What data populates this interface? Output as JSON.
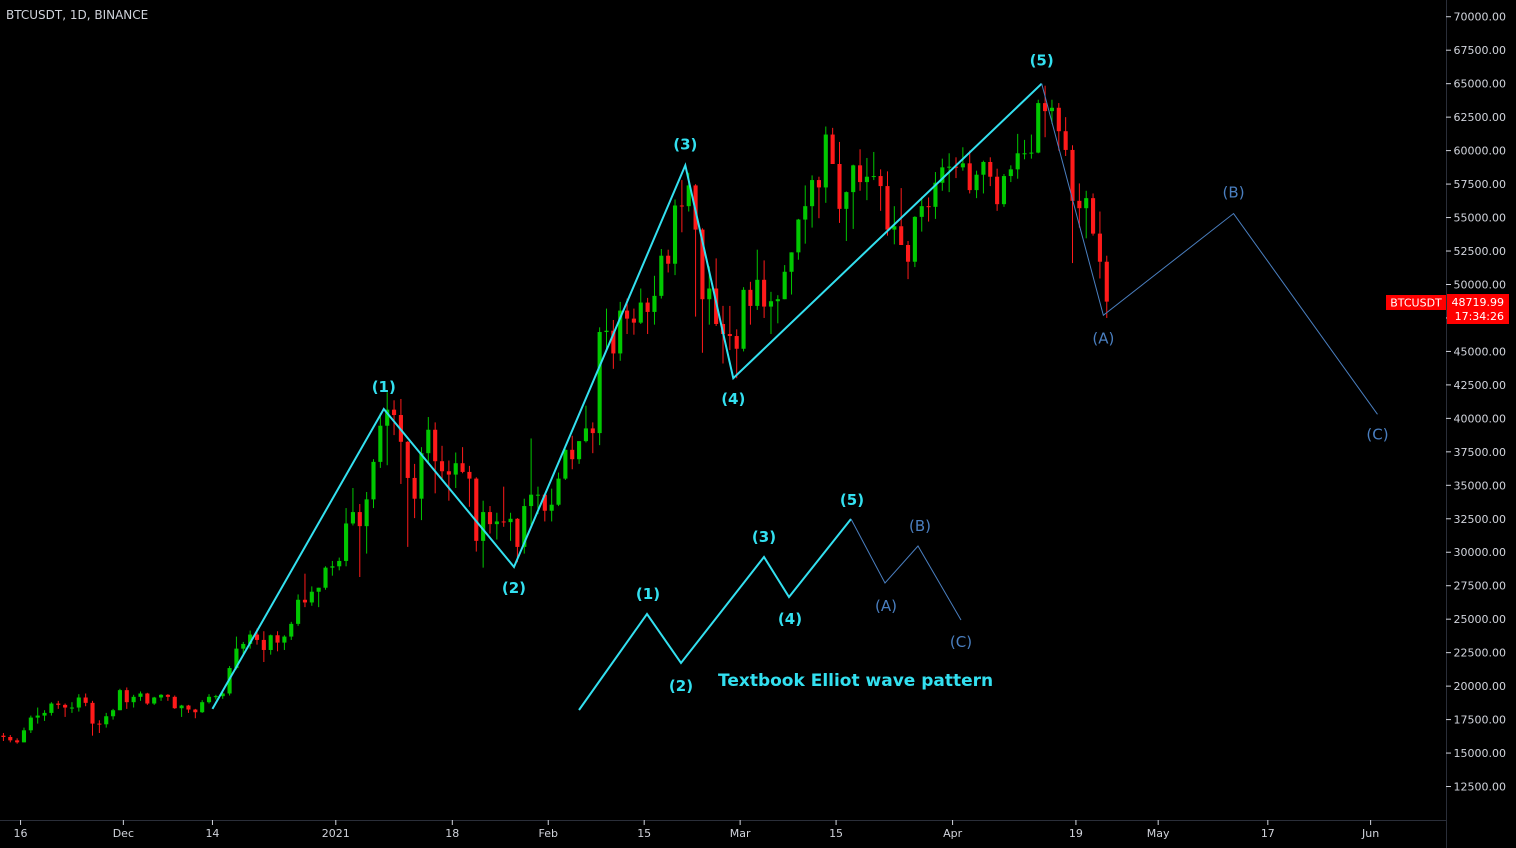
{
  "header": {
    "symbol_title": "BTCUSDT, 1D, BINANCE"
  },
  "price_tag": {
    "symbol": "BTCUSDT",
    "price": "48719.99",
    "countdown": "17:34:26",
    "color": "#ff0000"
  },
  "colors": {
    "background": "#000000",
    "up": "#00c800",
    "down": "#ff1a1a",
    "wave": "#33e0f0",
    "correction": "#4a7fc0",
    "axis_text": "#d1d4dc",
    "axis_line": "#2a2e39"
  },
  "chart_data": {
    "type": "candlestick",
    "title": "BTCUSDT, 1D, BINANCE",
    "y_axis": {
      "min": 10000,
      "max": 71250,
      "position": "right",
      "ticks": [
        "12500.00",
        "15000.00",
        "17500.00",
        "20000.00",
        "22500.00",
        "25000.00",
        "27500.00",
        "30000.00",
        "32500.00",
        "35000.00",
        "37500.00",
        "40000.00",
        "42500.00",
        "45000.00",
        "47500.00",
        "50000.00",
        "52500.00",
        "55000.00",
        "57500.00",
        "60000.00",
        "62500.00",
        "65000.00",
        "67500.00",
        "70000.00"
      ]
    },
    "x_axis": {
      "start": "2020-11-13",
      "end": "2021-06-12",
      "ticks": [
        {
          "label": "16",
          "date": "2020-11-16"
        },
        {
          "label": "Dec",
          "date": "2020-12-01"
        },
        {
          "label": "14",
          "date": "2020-12-14"
        },
        {
          "label": "2021",
          "date": "2021-01-01"
        },
        {
          "label": "18",
          "date": "2021-01-18"
        },
        {
          "label": "Feb",
          "date": "2021-02-01"
        },
        {
          "label": "15",
          "date": "2021-02-15"
        },
        {
          "label": "Mar",
          "date": "2021-03-01"
        },
        {
          "label": "15",
          "date": "2021-03-15"
        },
        {
          "label": "Apr",
          "date": "2021-04-01"
        },
        {
          "label": "19",
          "date": "2021-04-19"
        },
        {
          "label": "May",
          "date": "2021-05-01"
        },
        {
          "label": "17",
          "date": "2021-05-17"
        },
        {
          "label": "Jun",
          "date": "2021-06-01"
        }
      ]
    },
    "candles": [
      [
        "2020-11-13",
        16300,
        16500,
        15900,
        16200
      ],
      [
        "2020-11-14",
        16200,
        16350,
        15800,
        15950
      ],
      [
        "2020-11-15",
        15950,
        16100,
        15700,
        15800
      ],
      [
        "2020-11-16",
        15800,
        16900,
        15800,
        16700
      ],
      [
        "2020-11-17",
        16700,
        17800,
        16500,
        17650
      ],
      [
        "2020-11-18",
        17650,
        18400,
        17200,
        17800
      ],
      [
        "2020-11-19",
        17800,
        18200,
        17400,
        18000
      ],
      [
        "2020-11-20",
        18000,
        18800,
        17800,
        18700
      ],
      [
        "2020-11-21",
        18700,
        18900,
        18300,
        18600
      ],
      [
        "2020-11-22",
        18600,
        18700,
        17700,
        18400
      ],
      [
        "2020-11-23",
        18400,
        18800,
        18000,
        18400
      ],
      [
        "2020-11-24",
        18400,
        19400,
        18100,
        19150
      ],
      [
        "2020-11-25",
        19150,
        19450,
        18500,
        18750
      ],
      [
        "2020-11-26",
        18750,
        18900,
        16300,
        17200
      ],
      [
        "2020-11-27",
        17200,
        17450,
        16500,
        17150
      ],
      [
        "2020-11-28",
        17150,
        18000,
        16900,
        17750
      ],
      [
        "2020-11-29",
        17750,
        18300,
        17500,
        18200
      ],
      [
        "2020-11-30",
        18200,
        19800,
        18200,
        19700
      ],
      [
        "2020-12-01",
        19700,
        19900,
        18300,
        18800
      ],
      [
        "2020-12-02",
        18800,
        19350,
        18400,
        19200
      ],
      [
        "2020-12-03",
        19200,
        19600,
        18900,
        19450
      ],
      [
        "2020-12-04",
        19450,
        19500,
        18600,
        18700
      ],
      [
        "2020-12-05",
        18700,
        19200,
        18600,
        19150
      ],
      [
        "2020-12-06",
        19150,
        19400,
        18900,
        19350
      ],
      [
        "2020-12-07",
        19350,
        19400,
        18900,
        19200
      ],
      [
        "2020-12-08",
        19200,
        19300,
        18300,
        18350
      ],
      [
        "2020-12-09",
        18350,
        18600,
        17700,
        18550
      ],
      [
        "2020-12-10",
        18550,
        18600,
        18000,
        18250
      ],
      [
        "2020-12-11",
        18250,
        18300,
        17600,
        18050
      ],
      [
        "2020-12-12",
        18050,
        18950,
        18000,
        18800
      ],
      [
        "2020-12-13",
        18800,
        19400,
        18700,
        19200
      ],
      [
        "2020-12-14",
        19200,
        19350,
        19000,
        19250
      ],
      [
        "2020-12-15",
        19250,
        19550,
        19050,
        19450
      ],
      [
        "2020-12-16",
        19450,
        21500,
        19300,
        21350
      ],
      [
        "2020-12-17",
        21350,
        23700,
        21250,
        22800
      ],
      [
        "2020-12-18",
        22800,
        23300,
        22350,
        23150
      ],
      [
        "2020-12-19",
        23150,
        24150,
        22800,
        23850
      ],
      [
        "2020-12-20",
        23850,
        24300,
        23100,
        23450
      ],
      [
        "2020-12-21",
        23450,
        24100,
        21800,
        22700
      ],
      [
        "2020-12-22",
        22700,
        23850,
        22350,
        23800
      ],
      [
        "2020-12-23",
        23800,
        24100,
        22600,
        23250
      ],
      [
        "2020-12-24",
        23250,
        23800,
        22700,
        23700
      ],
      [
        "2020-12-25",
        23700,
        24800,
        23450,
        24650
      ],
      [
        "2020-12-26",
        24650,
        26850,
        24500,
        26450
      ],
      [
        "2020-12-27",
        26450,
        28400,
        25900,
        26250
      ],
      [
        "2020-12-28",
        26250,
        27450,
        26000,
        27050
      ],
      [
        "2020-12-29",
        27050,
        27350,
        25900,
        27350
      ],
      [
        "2020-12-30",
        27350,
        28950,
        27200,
        28850
      ],
      [
        "2020-12-31",
        28850,
        29350,
        28250,
        28950
      ],
      [
        "2021-01-01",
        28950,
        29600,
        28650,
        29350
      ],
      [
        "2021-01-02",
        29350,
        33300,
        28950,
        32150
      ],
      [
        "2021-01-03",
        32150,
        34800,
        32000,
        33000
      ],
      [
        "2021-01-04",
        33000,
        33600,
        28150,
        31950
      ],
      [
        "2021-01-05",
        31950,
        34500,
        29900,
        33950
      ],
      [
        "2021-01-06",
        33950,
        36950,
        33300,
        36750
      ],
      [
        "2021-01-07",
        36750,
        40400,
        36300,
        39450
      ],
      [
        "2021-01-08",
        39450,
        41950,
        36500,
        40650
      ],
      [
        "2021-01-09",
        40650,
        41350,
        38750,
        40250
      ],
      [
        "2021-01-10",
        40250,
        41450,
        35100,
        38250
      ],
      [
        "2021-01-11",
        38250,
        38300,
        30400,
        35550
      ],
      [
        "2021-01-12",
        35550,
        36600,
        32550,
        34000
      ],
      [
        "2021-01-13",
        34000,
        37850,
        32400,
        37400
      ],
      [
        "2021-01-14",
        37400,
        40100,
        36700,
        39150
      ],
      [
        "2021-01-15",
        39150,
        39700,
        34400,
        36800
      ],
      [
        "2021-01-16",
        36800,
        37950,
        35400,
        36050
      ],
      [
        "2021-01-17",
        36050,
        36850,
        33850,
        35800
      ],
      [
        "2021-01-18",
        35800,
        37450,
        34800,
        36650
      ],
      [
        "2021-01-19",
        36650,
        37850,
        35900,
        36000
      ],
      [
        "2021-01-20",
        36000,
        36450,
        33400,
        35500
      ],
      [
        "2021-01-21",
        35500,
        35600,
        30050,
        30850
      ],
      [
        "2021-01-22",
        30850,
        33850,
        28850,
        33000
      ],
      [
        "2021-01-23",
        33000,
        33450,
        31400,
        32100
      ],
      [
        "2021-01-24",
        32100,
        32950,
        30950,
        32300
      ],
      [
        "2021-01-25",
        32300,
        34900,
        31900,
        32250
      ],
      [
        "2021-01-26",
        32250,
        32950,
        30850,
        32500
      ],
      [
        "2021-01-27",
        32500,
        32550,
        29250,
        30400
      ],
      [
        "2021-01-28",
        30400,
        34000,
        29900,
        33450
      ],
      [
        "2021-01-29",
        33450,
        38500,
        31950,
        34300
      ],
      [
        "2021-01-30",
        34300,
        34900,
        32850,
        34300
      ],
      [
        "2021-01-31",
        34300,
        34350,
        32300,
        33100
      ],
      [
        "2021-02-01",
        33100,
        34750,
        32300,
        33550
      ],
      [
        "2021-02-02",
        33550,
        35950,
        33450,
        35500
      ],
      [
        "2021-02-03",
        35500,
        37700,
        35400,
        37650
      ],
      [
        "2021-02-04",
        37650,
        38700,
        36200,
        36950
      ],
      [
        "2021-02-05",
        36950,
        38300,
        36600,
        38300
      ],
      [
        "2021-02-06",
        38300,
        40950,
        38200,
        39250
      ],
      [
        "2021-02-07",
        39250,
        39700,
        37400,
        38900
      ],
      [
        "2021-02-08",
        38900,
        46800,
        38000,
        46450
      ],
      [
        "2021-02-09",
        46450,
        48200,
        45000,
        46550
      ],
      [
        "2021-02-10",
        46550,
        47350,
        43700,
        44850
      ],
      [
        "2021-02-11",
        44850,
        48700,
        44300,
        48050
      ],
      [
        "2021-02-12",
        48050,
        48950,
        46300,
        47450
      ],
      [
        "2021-02-13",
        47450,
        48200,
        46250,
        47150
      ],
      [
        "2021-02-14",
        47150,
        49700,
        47050,
        48650
      ],
      [
        "2021-02-15",
        48650,
        49000,
        46300,
        47950
      ],
      [
        "2021-02-16",
        47950,
        50650,
        47000,
        49150
      ],
      [
        "2021-02-17",
        49150,
        52650,
        48950,
        52150
      ],
      [
        "2021-02-18",
        52150,
        52600,
        50900,
        51550
      ],
      [
        "2021-02-19",
        51550,
        56350,
        50700,
        55900
      ],
      [
        "2021-02-20",
        55900,
        57800,
        53900,
        55850
      ],
      [
        "2021-02-21",
        55850,
        58350,
        55450,
        57400
      ],
      [
        "2021-02-22",
        57400,
        57500,
        47600,
        54100
      ],
      [
        "2021-02-23",
        54100,
        54200,
        44900,
        48900
      ],
      [
        "2021-02-24",
        48900,
        51350,
        47000,
        49700
      ],
      [
        "2021-02-25",
        49700,
        51950,
        46900,
        47050
      ],
      [
        "2021-02-26",
        47050,
        48400,
        44100,
        46300
      ],
      [
        "2021-02-27",
        46300,
        48400,
        45100,
        46150
      ],
      [
        "2021-02-28",
        46150,
        46650,
        43000,
        45200
      ],
      [
        "2021-03-01",
        45200,
        49800,
        45000,
        49600
      ],
      [
        "2021-03-02",
        49600,
        50200,
        47000,
        48400
      ],
      [
        "2021-03-03",
        48400,
        52600,
        48100,
        50350
      ],
      [
        "2021-03-04",
        50350,
        51800,
        47500,
        48350
      ],
      [
        "2021-03-05",
        48350,
        49450,
        46300,
        48750
      ],
      [
        "2021-03-06",
        48750,
        49200,
        47100,
        48900
      ],
      [
        "2021-03-07",
        48900,
        51450,
        48900,
        50950
      ],
      [
        "2021-03-08",
        50950,
        52400,
        49250,
        52400
      ],
      [
        "2021-03-09",
        52400,
        54900,
        51850,
        54850
      ],
      [
        "2021-03-10",
        54850,
        57400,
        53050,
        55850
      ],
      [
        "2021-03-11",
        55850,
        58150,
        54250,
        57800
      ],
      [
        "2021-03-12",
        57800,
        58050,
        54950,
        57250
      ],
      [
        "2021-03-13",
        57250,
        61800,
        56100,
        61200
      ],
      [
        "2021-03-14",
        61200,
        61700,
        59000,
        59000
      ],
      [
        "2021-03-15",
        59000,
        60650,
        54600,
        55650
      ],
      [
        "2021-03-16",
        55650,
        56950,
        53250,
        56900
      ],
      [
        "2021-03-17",
        56900,
        58950,
        54150,
        58900
      ],
      [
        "2021-03-18",
        58900,
        60100,
        57000,
        57650
      ],
      [
        "2021-03-19",
        57650,
        59450,
        56300,
        58050
      ],
      [
        "2021-03-20",
        58050,
        59900,
        57800,
        58100
      ],
      [
        "2021-03-21",
        58100,
        58600,
        55500,
        57350
      ],
      [
        "2021-03-22",
        57350,
        58450,
        53650,
        54100
      ],
      [
        "2021-03-23",
        54100,
        55850,
        53000,
        54350
      ],
      [
        "2021-03-24",
        54350,
        57200,
        52950,
        52950
      ],
      [
        "2021-03-25",
        52950,
        53250,
        50400,
        51700
      ],
      [
        "2021-03-26",
        51700,
        55100,
        51300,
        55050
      ],
      [
        "2021-03-27",
        55050,
        56550,
        53950,
        55850
      ],
      [
        "2021-03-28",
        55850,
        56500,
        54700,
        55800
      ],
      [
        "2021-03-29",
        55800,
        58400,
        54900,
        57600
      ],
      [
        "2021-03-30",
        57600,
        59400,
        57000,
        58750
      ],
      [
        "2021-03-31",
        58750,
        59800,
        56900,
        58800
      ],
      [
        "2021-04-01",
        58800,
        59500,
        57950,
        58750
      ],
      [
        "2021-04-02",
        58750,
        60250,
        58500,
        59050
      ],
      [
        "2021-04-03",
        59050,
        60000,
        56800,
        57050
      ],
      [
        "2021-04-04",
        57050,
        58500,
        56450,
        58200
      ],
      [
        "2021-04-05",
        58200,
        59250,
        56800,
        59150
      ],
      [
        "2021-04-06",
        59150,
        59500,
        57350,
        58050
      ],
      [
        "2021-04-07",
        58050,
        58650,
        55500,
        56000
      ],
      [
        "2021-04-08",
        56000,
        58250,
        55800,
        58100
      ],
      [
        "2021-04-09",
        58100,
        58900,
        57650,
        58600
      ],
      [
        "2021-04-10",
        58600,
        61250,
        57900,
        59800
      ],
      [
        "2021-04-11",
        59800,
        60800,
        59350,
        59800
      ],
      [
        "2021-04-12",
        59800,
        61200,
        59400,
        59850
      ],
      [
        "2021-04-13",
        59850,
        63800,
        59800,
        63550
      ],
      [
        "2021-04-14",
        63550,
        64850,
        61000,
        62950
      ],
      [
        "2021-04-15",
        62950,
        63800,
        62000,
        63200
      ],
      [
        "2021-04-16",
        63200,
        63550,
        60000,
        61450
      ],
      [
        "2021-04-17",
        61450,
        62500,
        59600,
        60050
      ],
      [
        "2021-04-18",
        60050,
        60400,
        51600,
        56250
      ],
      [
        "2021-04-19",
        56250,
        57550,
        54250,
        55700
      ],
      [
        "2021-04-20",
        55700,
        57000,
        53450,
        56450
      ],
      [
        "2021-04-21",
        56450,
        56800,
        53650,
        53800
      ],
      [
        "2021-04-22",
        53800,
        55450,
        50450,
        51700
      ],
      [
        "2021-04-23",
        51700,
        52150,
        47500,
        48720
      ]
    ],
    "annotations": {
      "main_impulse": [
        {
          "label": "(1)",
          "date": "2021-01-08",
          "price": 40700
        },
        {
          "label": "(2)",
          "date": "2021-01-27",
          "price": 28900
        },
        {
          "label": "(3)",
          "date": "2021-02-21",
          "price": 58900
        },
        {
          "label": "(4)",
          "date": "2021-02-28",
          "price": 43000
        },
        {
          "label": "(5)",
          "date": "2021-04-14",
          "price": 65000
        }
      ],
      "projection": [
        {
          "label": "(A)",
          "date": "2021-04-23",
          "price": 47700
        },
        {
          "label": "(B)",
          "date": "2021-05-12",
          "price": 55300
        },
        {
          "label": "(C)",
          "date": "2021-06-02",
          "price": 40300
        }
      ],
      "textbook_caption": "Textbook Elliot wave pattern",
      "textbook_labels": [
        "(1)",
        "(2)",
        "(3)",
        "(4)",
        "(5)",
        "(A)",
        "(B)",
        "(C)"
      ]
    }
  }
}
